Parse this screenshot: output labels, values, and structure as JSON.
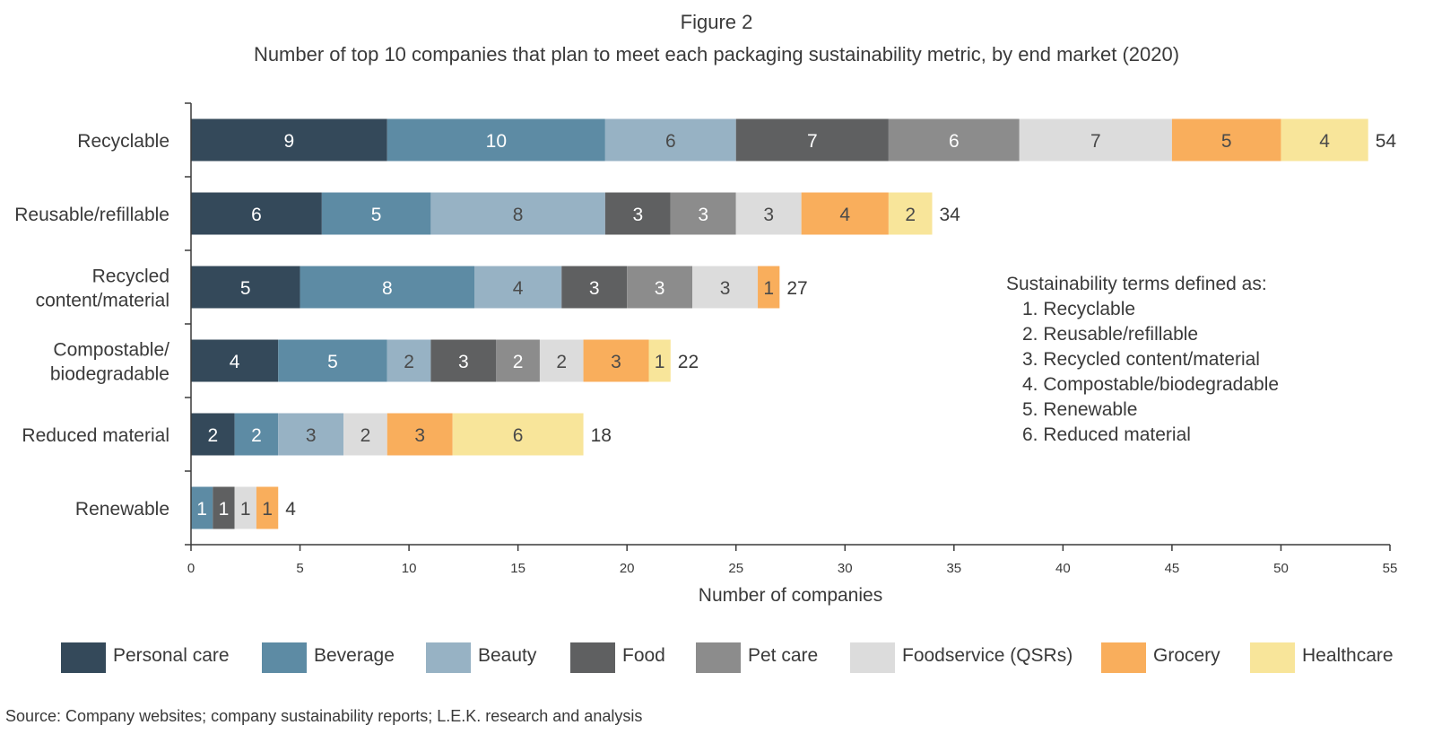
{
  "figure_label": "Figure 2",
  "chart_data": {
    "type": "bar",
    "orientation": "horizontal",
    "stacked": true,
    "title": "Number of top 10 companies that plan to meet each packaging sustainability metric, by end market (2020)",
    "xlabel": "Number of companies",
    "ylabel": "",
    "xlim": [
      0,
      55
    ],
    "xticks": [
      0,
      5,
      10,
      15,
      20,
      25,
      30,
      35,
      40,
      45,
      50,
      55
    ],
    "grid": false,
    "legend_position": "bottom",
    "categories": [
      "Recyclable",
      "Reusable/refillable",
      "Recycled content/material",
      "Compostable/ biodegradable",
      "Reduced material",
      "Renewable"
    ],
    "category_lines": [
      [
        "Recyclable"
      ],
      [
        "Reusable/refillable"
      ],
      [
        "Recycled",
        "content/material"
      ],
      [
        "Compostable/",
        "biodegradable"
      ],
      [
        "Reduced material"
      ],
      [
        "Renewable"
      ]
    ],
    "totals": [
      54,
      34,
      27,
      22,
      18,
      4
    ],
    "series": [
      {
        "name": "Personal care",
        "color": "#34495a",
        "label_color": "#ffffff",
        "values": [
          9,
          6,
          5,
          4,
          2,
          0
        ]
      },
      {
        "name": "Beverage",
        "color": "#5d8ba4",
        "label_color": "#ffffff",
        "values": [
          10,
          5,
          8,
          5,
          2,
          1
        ]
      },
      {
        "name": "Beauty",
        "color": "#97b2c4",
        "label_color": "#4a4a4a",
        "values": [
          6,
          8,
          4,
          2,
          3,
          0
        ]
      },
      {
        "name": "Food",
        "color": "#5f6061",
        "label_color": "#ffffff",
        "values": [
          7,
          3,
          3,
          3,
          0,
          1
        ]
      },
      {
        "name": "Pet care",
        "color": "#8c8c8c",
        "label_color": "#ffffff",
        "values": [
          6,
          3,
          3,
          2,
          0,
          0
        ]
      },
      {
        "name": "Foodservice (QSRs)",
        "color": "#dcdcdc",
        "label_color": "#4a4a4a",
        "values": [
          7,
          3,
          3,
          2,
          2,
          1
        ]
      },
      {
        "name": "Grocery",
        "color": "#f9ae5c",
        "label_color": "#4a4a4a",
        "values": [
          5,
          4,
          1,
          3,
          3,
          1
        ]
      },
      {
        "name": "Healthcare",
        "color": "#f8e59a",
        "label_color": "#4a4a4a",
        "values": [
          4,
          2,
          0,
          1,
          6,
          0
        ]
      }
    ]
  },
  "definitions": {
    "heading": "Sustainability terms defined as:",
    "items": [
      "1. Recyclable",
      "2. Reusable/refillable",
      "3. Recycled content/material",
      "4. Compostable/biodegradable",
      "5. Renewable",
      "6. Reduced material"
    ]
  },
  "source": "Source: Company websites; company sustainability reports; L.E.K. research and analysis"
}
